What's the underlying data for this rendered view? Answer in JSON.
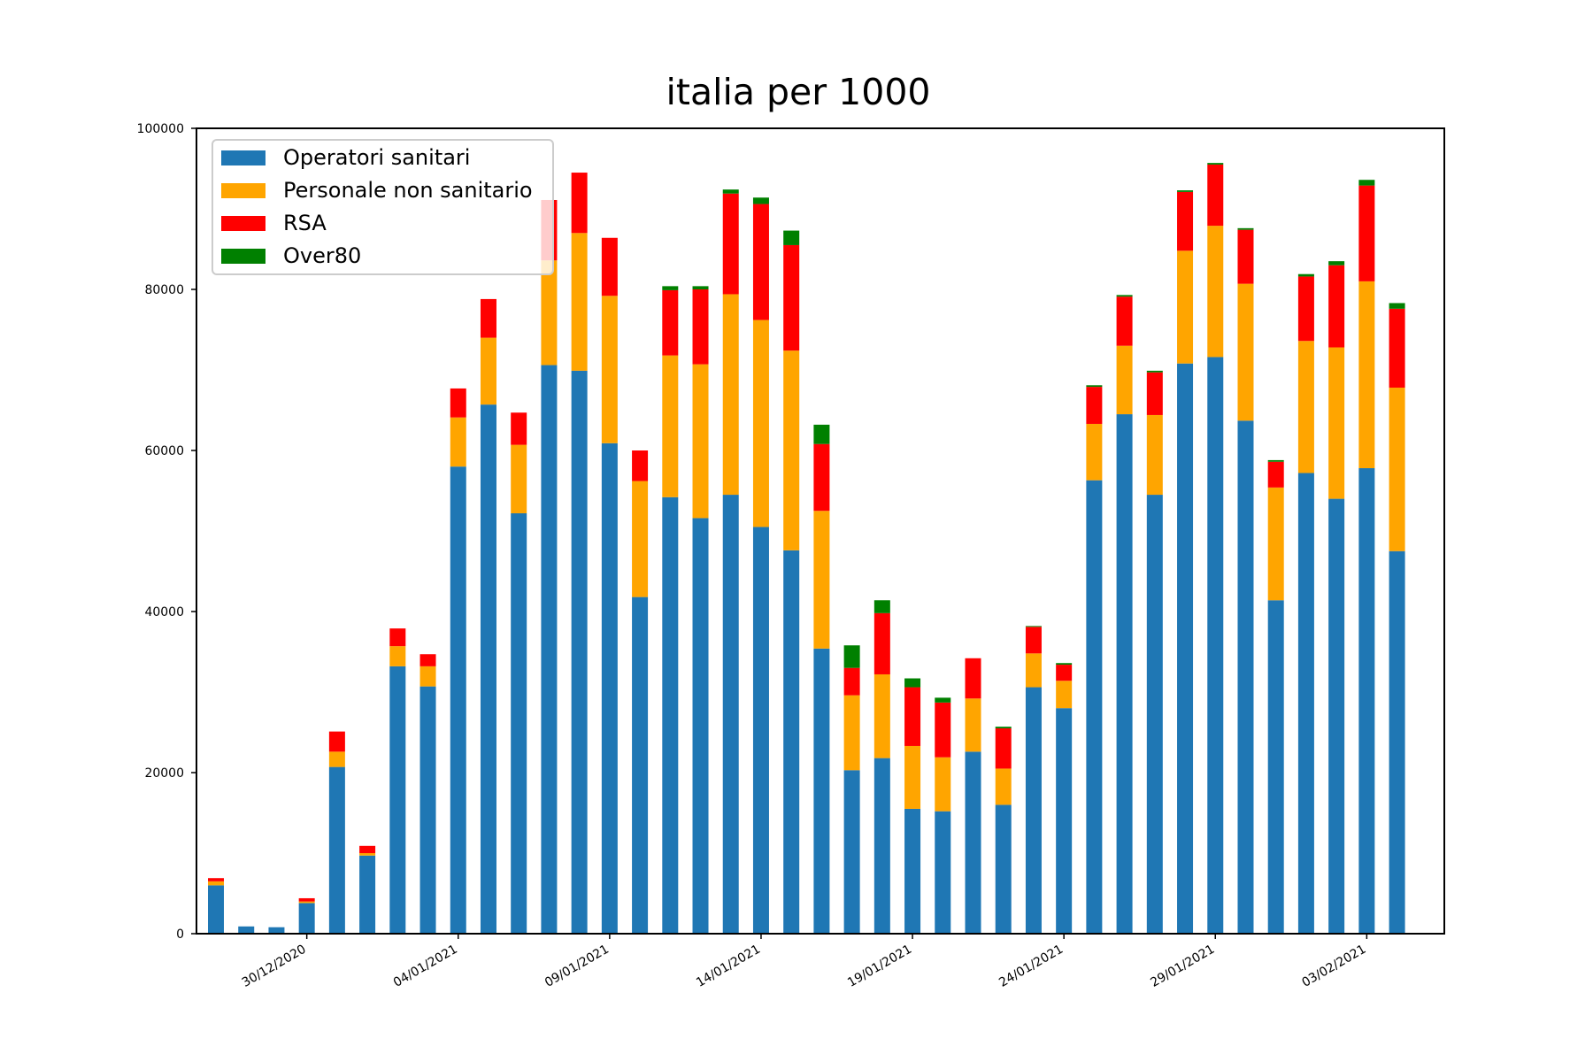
{
  "chart_data": {
    "type": "bar",
    "stacked": true,
    "title": "italia per 1000",
    "xlabel": "",
    "ylabel": "",
    "ylim": [
      0,
      100000
    ],
    "yticks": [
      0,
      20000,
      40000,
      60000,
      80000,
      100000
    ],
    "grid": false,
    "legend_position": "top-left",
    "categories": [
      "27/12/2020",
      "28/12/2020",
      "29/12/2020",
      "30/12/2020",
      "31/12/2020",
      "01/01/2021",
      "02/01/2021",
      "03/01/2021",
      "04/01/2021",
      "05/01/2021",
      "06/01/2021",
      "07/01/2021",
      "08/01/2021",
      "09/01/2021",
      "10/01/2021",
      "11/01/2021",
      "12/01/2021",
      "13/01/2021",
      "14/01/2021",
      "15/01/2021",
      "16/01/2021",
      "17/01/2021",
      "18/01/2021",
      "19/01/2021",
      "20/01/2021",
      "21/01/2021",
      "22/01/2021",
      "23/01/2021",
      "24/01/2021",
      "25/01/2021",
      "26/01/2021",
      "27/01/2021",
      "28/01/2021",
      "29/01/2021",
      "30/01/2021",
      "31/01/2021",
      "01/02/2021",
      "02/02/2021",
      "03/02/2021",
      "04/02/2021"
    ],
    "xtick_labels": [
      "30/12/2020",
      "04/01/2021",
      "09/01/2021",
      "14/01/2021",
      "19/01/2021",
      "24/01/2021",
      "29/01/2021",
      "03/02/2021"
    ],
    "series": [
      {
        "name": "Operatori sanitari",
        "color": "#1f77b4",
        "values": [
          6000,
          900,
          800,
          3800,
          20700,
          9700,
          33200,
          30700,
          58000,
          65700,
          52200,
          70600,
          69900,
          60900,
          41800,
          54200,
          51600,
          54500,
          50500,
          47600,
          35400,
          20300,
          21800,
          15500,
          15200,
          22600,
          16000,
          30600,
          28000,
          56300,
          64500,
          54500,
          70800,
          71600,
          63700,
          41400,
          57200,
          54000,
          57800,
          47500
        ]
      },
      {
        "name": "Personale non sanitario",
        "color": "#ffa500",
        "values": [
          500,
          0,
          0,
          200,
          1900,
          300,
          2500,
          2500,
          6100,
          8300,
          8500,
          13000,
          17100,
          18300,
          14400,
          17600,
          19100,
          24900,
          25700,
          24800,
          17100,
          9300,
          10400,
          7800,
          6700,
          6600,
          4500,
          4200,
          3400,
          7000,
          8500,
          9900,
          14000,
          16300,
          17000,
          14000,
          16400,
          18800,
          23200,
          20300
        ]
      },
      {
        "name": "RSA",
        "color": "#ff0000",
        "values": [
          400,
          0,
          0,
          400,
          2500,
          900,
          2200,
          1500,
          3600,
          4800,
          4000,
          7500,
          7500,
          7200,
          3800,
          8100,
          9300,
          12500,
          14400,
          13100,
          8300,
          3400,
          7600,
          7300,
          6800,
          5000,
          5000,
          3300,
          2000,
          4600,
          6100,
          5300,
          7300,
          7600,
          6700,
          3200,
          8000,
          10200,
          11900,
          9800
        ]
      },
      {
        "name": "Over80",
        "color": "#008000",
        "values": [
          0,
          0,
          0,
          0,
          0,
          0,
          0,
          0,
          0,
          0,
          0,
          0,
          0,
          0,
          0,
          500,
          400,
          500,
          800,
          1800,
          2400,
          2800,
          1600,
          1100,
          600,
          0,
          200,
          100,
          200,
          200,
          200,
          200,
          200,
          200,
          200,
          200,
          300,
          500,
          700,
          700
        ]
      }
    ]
  }
}
